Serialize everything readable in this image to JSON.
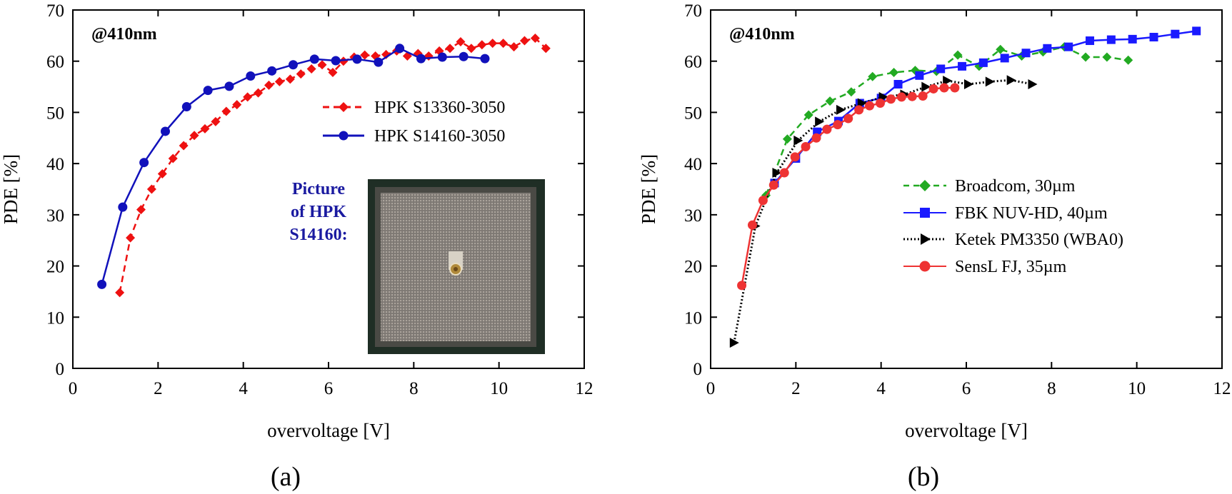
{
  "chart_data": [
    {
      "type": "line",
      "panel": "a",
      "caption": "(a)",
      "annotation": "@410nm",
      "xlabel": "overvoltage [V]",
      "ylabel": "PDE [%]",
      "xlim": [
        0,
        12
      ],
      "ylim": [
        0,
        70
      ],
      "xticks": [
        "0",
        "2",
        "4",
        "6",
        "8",
        "10",
        "12"
      ],
      "yticks": [
        "0",
        "10",
        "20",
        "30",
        "40",
        "50",
        "60",
        "70"
      ],
      "grid": false,
      "legend_position": "upper-right",
      "inset": {
        "label_lines": [
          "Picture",
          "of HPK",
          "S14160:"
        ],
        "description": "photo of SiPM chip"
      },
      "series": [
        {
          "name": "HPK S13360-3050",
          "color": "#ee1111",
          "dash": "dashed",
          "marker": "diamond",
          "x": [
            1.1,
            1.35,
            1.6,
            1.85,
            2.1,
            2.35,
            2.6,
            2.85,
            3.1,
            3.35,
            3.6,
            3.85,
            4.1,
            4.35,
            4.6,
            4.85,
            5.1,
            5.35,
            5.6,
            5.85,
            6.1,
            6.35,
            6.6,
            6.85,
            7.1,
            7.35,
            7.6,
            7.85,
            8.1,
            8.35,
            8.6,
            8.85,
            9.1,
            9.35,
            9.6,
            9.85,
            10.1,
            10.35,
            10.6,
            10.85,
            11.1
          ],
          "y": [
            14.8,
            25.5,
            31.0,
            35.0,
            38.0,
            41.0,
            43.5,
            45.5,
            46.8,
            48.2,
            50.2,
            51.5,
            53.0,
            53.8,
            55.3,
            56.0,
            56.5,
            57.5,
            58.5,
            59.3,
            57.8,
            60.0,
            60.8,
            61.2,
            61.0,
            61.3,
            62.0,
            61.0,
            61.5,
            61.0,
            62.0,
            62.5,
            63.8,
            62.5,
            63.2,
            63.5,
            63.5,
            62.8,
            64.0,
            64.5,
            62.5
          ]
        },
        {
          "name": "HPK S14160-3050",
          "color": "#1111bb",
          "dash": "solid",
          "marker": "circle",
          "x": [
            0.68,
            1.17,
            1.67,
            2.17,
            2.67,
            3.17,
            3.67,
            4.17,
            4.67,
            5.17,
            5.67,
            6.17,
            6.67,
            7.17,
            7.67,
            8.17,
            8.67,
            9.17,
            9.67
          ],
          "y": [
            16.4,
            31.5,
            40.2,
            46.3,
            51.1,
            54.3,
            55.1,
            57.1,
            58.1,
            59.3,
            60.4,
            60.1,
            60.4,
            59.8,
            62.5,
            60.5,
            60.8,
            60.9,
            60.5
          ]
        }
      ]
    },
    {
      "type": "line",
      "panel": "b",
      "caption": "(b)",
      "annotation": "@410nm",
      "xlabel": "overvoltage [V]",
      "ylabel": "PDE [%]",
      "xlim": [
        0,
        12
      ],
      "ylim": [
        0,
        70
      ],
      "xticks": [
        "0",
        "2",
        "4",
        "6",
        "8",
        "10",
        "12"
      ],
      "yticks": [
        "0",
        "10",
        "20",
        "30",
        "40",
        "50",
        "60",
        "70"
      ],
      "grid": false,
      "legend_position": "center-right",
      "series": [
        {
          "name": "Broadcom, 30µm",
          "color": "#22aa22",
          "dash": "dashed",
          "marker": "diamond",
          "x": [
            1.3,
            1.8,
            2.3,
            2.8,
            3.3,
            3.8,
            4.3,
            4.8,
            5.3,
            5.8,
            6.3,
            6.8,
            7.3,
            7.8,
            8.3,
            8.8,
            9.3,
            9.8
          ],
          "y": [
            33.8,
            44.8,
            49.5,
            52.2,
            54.0,
            57.0,
            57.8,
            58.2,
            58.0,
            61.2,
            59.0,
            62.3,
            61.0,
            61.8,
            62.8,
            60.8,
            60.8,
            60.2
          ]
        },
        {
          "name": "FBK NUV-HD, 40µm",
          "color": "#1a1aff",
          "dash": "solid",
          "marker": "square",
          "x": [
            1.5,
            2.0,
            2.5,
            3.0,
            3.5,
            4.0,
            4.4,
            4.9,
            5.4,
            5.9,
            6.4,
            6.9,
            7.4,
            7.9,
            8.4,
            8.9,
            9.4,
            9.9,
            10.4,
            10.9,
            11.4
          ],
          "y": [
            36.2,
            41.0,
            46.2,
            48.3,
            51.8,
            52.8,
            55.5,
            57.2,
            58.5,
            59.0,
            59.7,
            60.6,
            61.6,
            62.5,
            62.8,
            64.0,
            64.2,
            64.3,
            64.7,
            65.3,
            65.9
          ]
        },
        {
          "name": "Ketek PM3350 (WBA0)",
          "color": "#000000",
          "dash": "dotted",
          "marker": "triangle-right",
          "x": [
            0.55,
            1.05,
            1.55,
            2.05,
            2.55,
            3.05,
            3.55,
            4.05,
            4.55,
            5.05,
            5.55,
            6.05,
            6.55,
            7.05,
            7.55
          ],
          "y": [
            5.0,
            27.8,
            38.2,
            44.5,
            48.2,
            50.5,
            51.8,
            53.0,
            53.5,
            55.0,
            56.2,
            55.5,
            56.0,
            56.3,
            55.5
          ]
        },
        {
          "name": "SensL FJ, 35µm",
          "color": "#ee3333",
          "dash": "solid",
          "marker": "circle",
          "x": [
            0.73,
            0.98,
            1.23,
            1.48,
            1.73,
            1.98,
            2.23,
            2.48,
            2.73,
            2.98,
            3.23,
            3.48,
            3.73,
            3.98,
            4.23,
            4.48,
            4.73,
            4.98,
            5.23,
            5.48,
            5.73
          ],
          "y": [
            16.2,
            28.0,
            32.8,
            35.8,
            38.2,
            41.3,
            43.3,
            45.0,
            46.7,
            47.6,
            48.8,
            50.5,
            51.3,
            51.8,
            52.6,
            53.0,
            53.1,
            53.2,
            54.6,
            54.8,
            54.8
          ]
        }
      ]
    }
  ]
}
